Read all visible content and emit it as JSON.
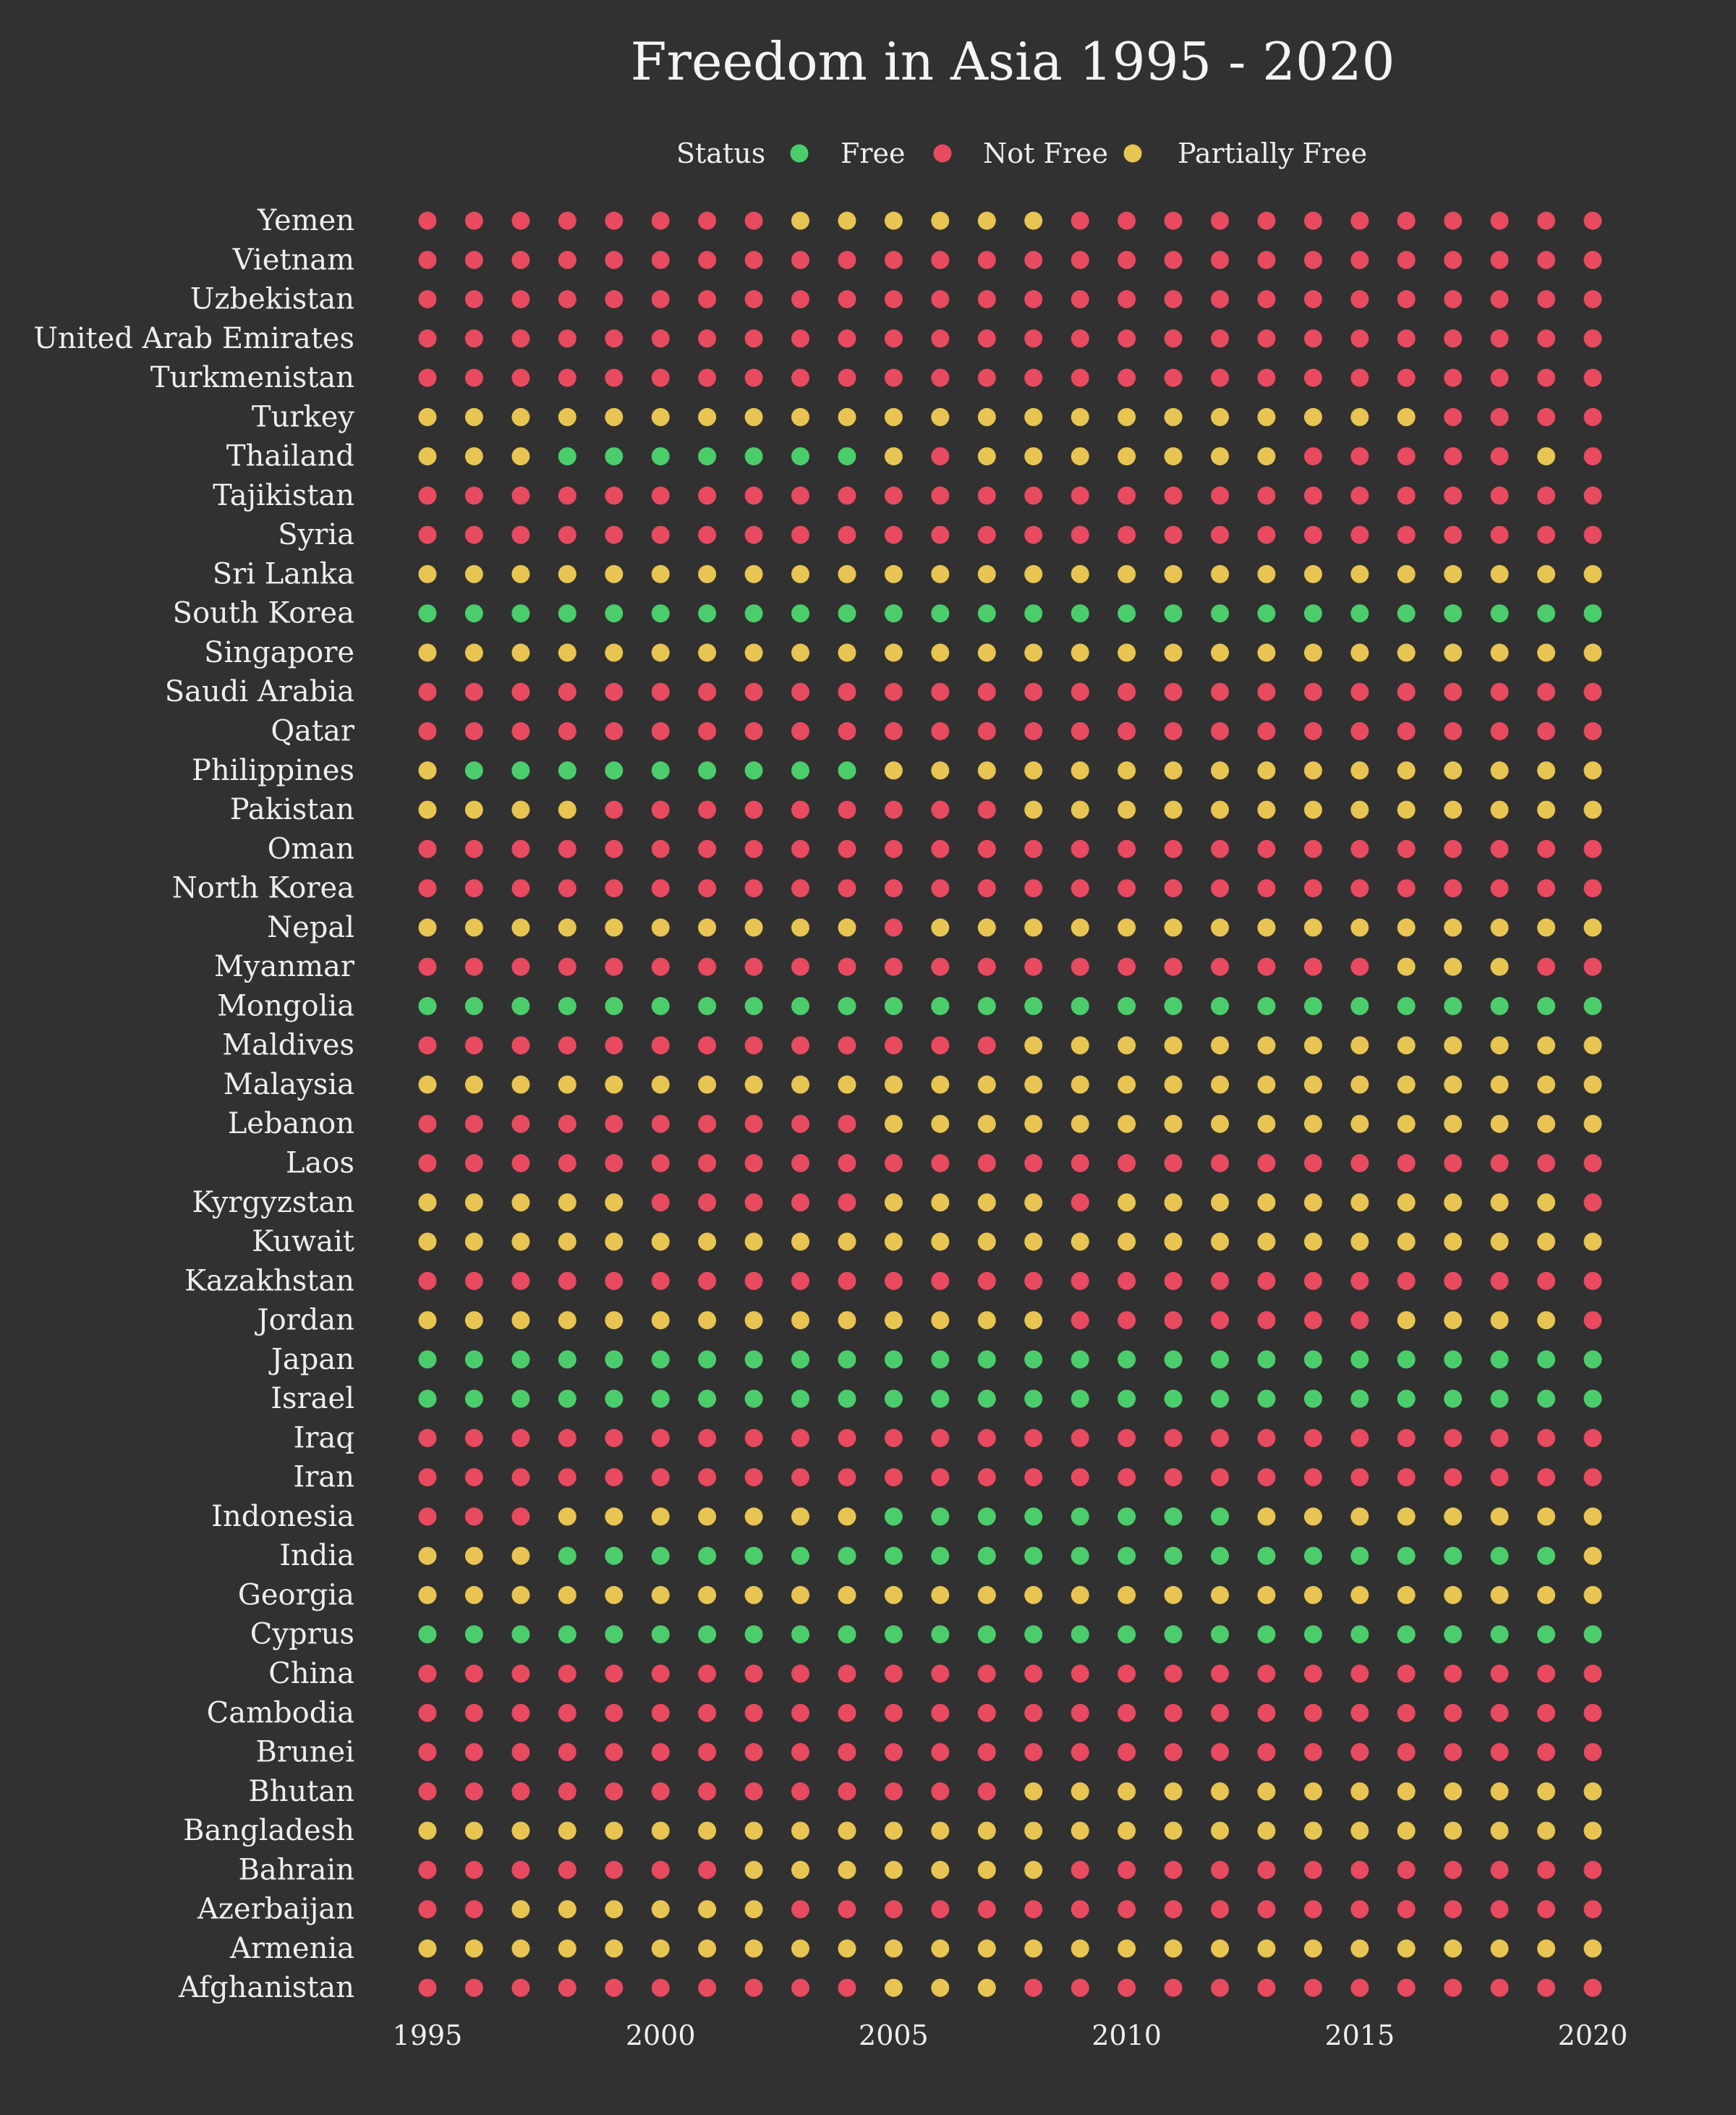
{
  "chart_data": {
    "type": "scatter",
    "title": "Freedom in Asia 1995 - 2020",
    "legend": {
      "title": "Status",
      "placement": "top",
      "entries": [
        {
          "code": "F",
          "label": "Free",
          "color": "#4ccd6b"
        },
        {
          "code": "N",
          "label": "Not Free",
          "color": "#e84a5f"
        },
        {
          "code": "P",
          "label": "Partially Free",
          "color": "#e8c552"
        }
      ]
    },
    "x": [
      1995,
      1996,
      1997,
      1998,
      1999,
      2000,
      2001,
      2002,
      2003,
      2004,
      2005,
      2006,
      2007,
      2008,
      2009,
      2010,
      2011,
      2012,
      2013,
      2014,
      2015,
      2016,
      2017,
      2018,
      2019,
      2020
    ],
    "xticks": [
      "1995",
      "2000",
      "2005",
      "2010",
      "2015",
      "2020"
    ],
    "xlim": [
      1995,
      2020
    ],
    "grid": false,
    "rows": [
      {
        "country": "Yemen",
        "status": "NNNNNNNNPPPPPPNNNNNNNNNNNN"
      },
      {
        "country": "Vietnam",
        "status": "NNNNNNNNNNNNNNNNNNNNNNNNNN"
      },
      {
        "country": "Uzbekistan",
        "status": "NNNNNNNNNNNNNNNNNNNNNNNNNN"
      },
      {
        "country": "United Arab Emirates",
        "status": "NNNNNNNNNNNNNNNNNNNNNNNNNN"
      },
      {
        "country": "Turkmenistan",
        "status": "NNNNNNNNNNNNNNNNNNNNNNNNNN"
      },
      {
        "country": "Turkey",
        "status": "PPPPPPPPPPPPPPPPPPPPPPNNNN"
      },
      {
        "country": "Thailand",
        "status": "PPPFFFFFFFPNPPPPPPPNNNNNPN"
      },
      {
        "country": "Tajikistan",
        "status": "NNNNNNNNNNNNNNNNNNNNNNNNNN"
      },
      {
        "country": "Syria",
        "status": "NNNNNNNNNNNNNNNNNNNNNNNNNN"
      },
      {
        "country": "Sri Lanka",
        "status": "PPPPPPPPPPPPPPPPPPPPPPPPPP"
      },
      {
        "country": "South Korea",
        "status": "FFFFFFFFFFFFFFFFFFFFFFFFFF"
      },
      {
        "country": "Singapore",
        "status": "PPPPPPPPPPPPPPPPPPPPPPPPPP"
      },
      {
        "country": "Saudi Arabia",
        "status": "NNNNNNNNNNNNNNNNNNNNNNNNNN"
      },
      {
        "country": "Qatar",
        "status": "NNNNNNNNNNNNNNNNNNNNNNNNNN"
      },
      {
        "country": "Philippines",
        "status": "PFFFFFFFFFPPPPPPPPPPPPPPPP"
      },
      {
        "country": "Pakistan",
        "status": "PPPPNNNNNNNNNPPPPPPPPPPPPP"
      },
      {
        "country": "Oman",
        "status": "NNNNNNNNNNNNNNNNNNNNNNNNNN"
      },
      {
        "country": "North Korea",
        "status": "NNNNNNNNNNNNNNNNNNNNNNNNNN"
      },
      {
        "country": "Nepal",
        "status": "PPPPPPPPPPNPPPPPPPPPPPPPPP"
      },
      {
        "country": "Myanmar",
        "status": "NNNNNNNNNNNNNNNNNNNNNPPPNN"
      },
      {
        "country": "Mongolia",
        "status": "FFFFFFFFFFFFFFFFFFFFFFFFFF"
      },
      {
        "country": "Maldives",
        "status": "NNNNNNNNNNNNNPPPPPPPPPPPPP"
      },
      {
        "country": "Malaysia",
        "status": "PPPPPPPPPPPPPPPPPPPPPPPPPP"
      },
      {
        "country": "Lebanon",
        "status": "NNNNNNNNNNPPPPPPPPPPPPPPPP"
      },
      {
        "country": "Laos",
        "status": "NNNNNNNNNNNNNNNNNNNNNNNNNN"
      },
      {
        "country": "Kyrgyzstan",
        "status": "PPPPPNNNNNPPPPNPPPPPPPPPPN"
      },
      {
        "country": "Kuwait",
        "status": "PPPPPPPPPPPPPPPPPPPPPPPPPP"
      },
      {
        "country": "Kazakhstan",
        "status": "NNNNNNNNNNNNNNNNNNNNNNNNNN"
      },
      {
        "country": "Jordan",
        "status": "PPPPPPPPPPPPPPNNNNNNNPPPPN"
      },
      {
        "country": "Japan",
        "status": "FFFFFFFFFFFFFFFFFFFFFFFFFF"
      },
      {
        "country": "Israel",
        "status": "FFFFFFFFFFFFFFFFFFFFFFFFFF"
      },
      {
        "country": "Iraq",
        "status": "NNNNNNNNNNNNNNNNNNNNNNNNNN"
      },
      {
        "country": "Iran",
        "status": "NNNNNNNNNNNNNNNNNNNNNNNNNN"
      },
      {
        "country": "Indonesia",
        "status": "NNNPPPPPPPFFFFFFFFPPPPPPPP"
      },
      {
        "country": "India",
        "status": "PPPFFFFFFFFFFFFFFFFFFFFFFP"
      },
      {
        "country": "Georgia",
        "status": "PPPPPPPPPPPPPPPPPPPPPPPPPP"
      },
      {
        "country": "Cyprus",
        "status": "FFFFFFFFFFFFFFFFFFFFFFFFFF"
      },
      {
        "country": "China",
        "status": "NNNNNNNNNNNNNNNNNNNNNNNNNN"
      },
      {
        "country": "Cambodia",
        "status": "NNNNNNNNNNNNNNNNNNNNNNNNNN"
      },
      {
        "country": "Brunei",
        "status": "NNNNNNNNNNNNNNNNNNNNNNNNNN"
      },
      {
        "country": "Bhutan",
        "status": "NNNNNNNNNNNNNPPPPPPPPPPPPP"
      },
      {
        "country": "Bangladesh",
        "status": "PPPPPPPPPPPPPPPPPPPPPPPPPP"
      },
      {
        "country": "Bahrain",
        "status": "NNNNNNNPPPPPPPNNNNNNNNNNNN"
      },
      {
        "country": "Azerbaijan",
        "status": "NNPPPPPPNNNNNNNNNNNNNNNNNN"
      },
      {
        "country": "Armenia",
        "status": "PPPPPPPPPPPPPPPPPPPPPPPPPP"
      },
      {
        "country": "Afghanistan",
        "status": "NNNNNNNNNNPPPNNNNNNNNNNNNN"
      }
    ]
  }
}
